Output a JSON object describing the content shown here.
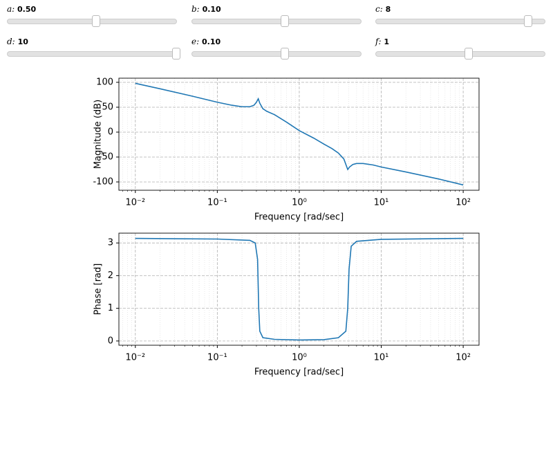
{
  "sliders": [
    {
      "label": "a:",
      "value": "0.50"
    },
    {
      "label": "b:",
      "value": "0.10"
    },
    {
      "label": "c:",
      "value": "8"
    },
    {
      "label": "d:",
      "value": "10"
    },
    {
      "label": "e:",
      "value": "0.10"
    },
    {
      "label": "f:",
      "value": "1"
    }
  ],
  "chart_data": [
    {
      "type": "line",
      "xlabel": "Frequency [rad/sec]",
      "ylabel": "Magnitude (dB)",
      "color": "#1f77b4",
      "x": [
        0.01,
        0.02,
        0.05,
        0.1,
        0.15,
        0.2,
        0.25,
        0.28,
        0.3,
        0.316,
        0.33,
        0.36,
        0.4,
        0.5,
        0.7,
        1,
        1.5,
        2,
        2.5,
        3,
        3.5,
        3.9,
        4.1,
        4.5,
        5,
        6,
        8,
        10,
        20,
        50,
        100
      ],
      "values": [
        98,
        87,
        72,
        60,
        54,
        51,
        51,
        54,
        60,
        67,
        58,
        47,
        42,
        35,
        20,
        3,
        -12,
        -24,
        -33,
        -42,
        -54,
        -75,
        -70,
        -65,
        -63,
        -63,
        -66,
        -70,
        -80,
        -94,
        -106
      ],
      "log_x": true,
      "grid": true,
      "xlim": [
        0.0063,
        156
      ],
      "ylim": [
        -116.7,
        108.3
      ],
      "xticks": [
        {
          "value": 0.01,
          "label": "10⁻²"
        },
        {
          "value": 0.1,
          "label": "10⁻¹"
        },
        {
          "value": 1,
          "label": "10⁰"
        },
        {
          "value": 10,
          "label": "10¹"
        },
        {
          "value": 100,
          "label": "10²"
        }
      ],
      "yticks": [
        -100,
        -50,
        0,
        50,
        100
      ]
    },
    {
      "type": "line",
      "xlabel": "Frequency [rad/sec]",
      "ylabel": "Phase [rad]",
      "color": "#1f77b4",
      "x": [
        0.01,
        0.1,
        0.25,
        0.29,
        0.31,
        0.32,
        0.33,
        0.36,
        0.5,
        1,
        2,
        3,
        3.7,
        3.9,
        4.05,
        4.3,
        5,
        10,
        100
      ],
      "values": [
        3.14,
        3.12,
        3.08,
        3.0,
        2.5,
        1.0,
        0.3,
        0.1,
        0.05,
        0.03,
        0.04,
        0.1,
        0.3,
        1.0,
        2.2,
        2.9,
        3.05,
        3.11,
        3.14
      ],
      "log_x": true,
      "grid": true,
      "xlim": [
        0.0063,
        156
      ],
      "ylim": [
        -0.13,
        3.3
      ],
      "xticks": [
        {
          "value": 0.01,
          "label": "10⁻²"
        },
        {
          "value": 0.1,
          "label": "10⁻¹"
        },
        {
          "value": 1,
          "label": "10⁰"
        },
        {
          "value": 10,
          "label": "10¹"
        },
        {
          "value": 100,
          "label": "10²"
        }
      ],
      "yticks": [
        0,
        1,
        2,
        3
      ]
    }
  ]
}
